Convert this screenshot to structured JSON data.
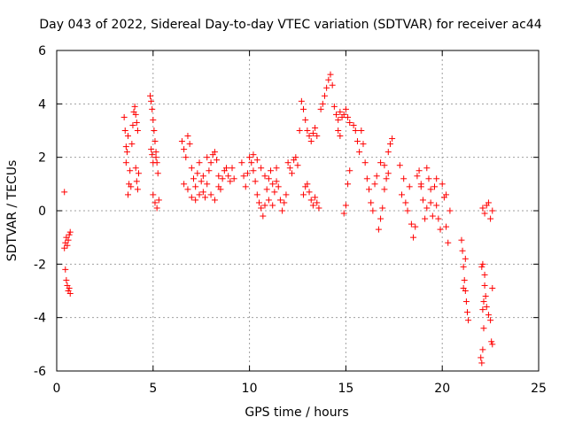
{
  "chart_data": {
    "type": "scatter",
    "title": "Day 043 of 2022, Sidereal Day-to-day VTEC variation (SDTVAR) for receiver ac44",
    "xlabel": "GPS time / hours",
    "ylabel": "SDTVAR / TECUs",
    "xlim": [
      0,
      25
    ],
    "ylim": [
      -6,
      6
    ],
    "xticks": [
      0,
      5,
      10,
      15,
      20,
      25
    ],
    "yticks": [
      -6,
      -4,
      -2,
      0,
      2,
      4,
      6
    ],
    "grid": true,
    "marker": "plus",
    "color": "#ff0000",
    "series": [
      {
        "name": "SDTVAR",
        "points": [
          [
            0.4,
            0.7
          ],
          [
            0.4,
            -1.4
          ],
          [
            0.45,
            -1.2
          ],
          [
            0.5,
            -1.0
          ],
          [
            0.55,
            -1.3
          ],
          [
            0.6,
            -1.1
          ],
          [
            0.65,
            -0.9
          ],
          [
            0.7,
            -0.8
          ],
          [
            0.45,
            -2.2
          ],
          [
            0.5,
            -2.6
          ],
          [
            0.55,
            -2.8
          ],
          [
            0.6,
            -3.0
          ],
          [
            0.65,
            -2.9
          ],
          [
            0.7,
            -3.1
          ],
          [
            3.5,
            3.5
          ],
          [
            3.55,
            3.0
          ],
          [
            3.6,
            2.4
          ],
          [
            3.6,
            1.8
          ],
          [
            3.65,
            2.2
          ],
          [
            3.7,
            2.8
          ],
          [
            3.75,
            1.0
          ],
          [
            3.7,
            0.6
          ],
          [
            3.8,
            1.5
          ],
          [
            3.85,
            0.9
          ],
          [
            3.9,
            2.5
          ],
          [
            3.95,
            3.2
          ],
          [
            4.0,
            3.7
          ],
          [
            4.05,
            3.9
          ],
          [
            4.1,
            3.6
          ],
          [
            4.15,
            3.3
          ],
          [
            4.2,
            3.0
          ],
          [
            4.1,
            1.6
          ],
          [
            4.15,
            1.1
          ],
          [
            4.2,
            0.8
          ],
          [
            4.25,
            1.4
          ],
          [
            4.85,
            4.3
          ],
          [
            4.9,
            4.1
          ],
          [
            4.95,
            3.8
          ],
          [
            5.0,
            3.4
          ],
          [
            5.05,
            3.0
          ],
          [
            5.1,
            2.6
          ],
          [
            5.15,
            2.2
          ],
          [
            5.2,
            1.8
          ],
          [
            5.25,
            1.4
          ],
          [
            5.3,
            0.4
          ],
          [
            5.2,
            0.1
          ],
          [
            5.1,
            0.3
          ],
          [
            4.95,
            2.1
          ],
          [
            5.0,
            1.8
          ],
          [
            4.9,
            2.3
          ],
          [
            5.15,
            2.0
          ],
          [
            5.0,
            0.6
          ],
          [
            6.5,
            2.6
          ],
          [
            6.6,
            2.3
          ],
          [
            6.7,
            2.0
          ],
          [
            6.8,
            2.8
          ],
          [
            6.9,
            2.5
          ],
          [
            7.0,
            1.6
          ],
          [
            7.1,
            1.2
          ],
          [
            7.2,
            0.9
          ],
          [
            7.3,
            1.4
          ],
          [
            7.4,
            1.8
          ],
          [
            7.5,
            1.1
          ],
          [
            7.6,
            0.7
          ],
          [
            7.7,
            0.5
          ],
          [
            7.8,
            1.0
          ],
          [
            7.9,
            1.5
          ],
          [
            8.0,
            1.8
          ],
          [
            8.1,
            2.1
          ],
          [
            8.2,
            2.2
          ],
          [
            8.3,
            1.9
          ],
          [
            8.4,
            1.3
          ],
          [
            8.5,
            0.8
          ],
          [
            8.6,
            1.2
          ],
          [
            8.7,
            1.5
          ],
          [
            8.8,
            1.6
          ],
          [
            8.9,
            1.3
          ],
          [
            9.0,
            1.1
          ],
          [
            9.1,
            1.6
          ],
          [
            9.2,
            1.2
          ],
          [
            6.6,
            1.0
          ],
          [
            6.8,
            0.8
          ],
          [
            7.0,
            0.5
          ],
          [
            7.2,
            0.4
          ],
          [
            7.4,
            0.6
          ],
          [
            7.6,
            1.3
          ],
          [
            7.8,
            2.0
          ],
          [
            8.0,
            0.6
          ],
          [
            8.2,
            0.4
          ],
          [
            8.4,
            0.9
          ],
          [
            9.6,
            1.8
          ],
          [
            9.7,
            1.3
          ],
          [
            9.8,
            0.9
          ],
          [
            9.9,
            1.4
          ],
          [
            10.0,
            2.0
          ],
          [
            10.1,
            1.8
          ],
          [
            10.2,
            1.5
          ],
          [
            10.3,
            1.1
          ],
          [
            10.4,
            0.6
          ],
          [
            10.5,
            0.3
          ],
          [
            10.6,
            0.1
          ],
          [
            10.7,
            -0.2
          ],
          [
            10.8,
            0.2
          ],
          [
            10.9,
            0.8
          ],
          [
            11.0,
            1.2
          ],
          [
            11.1,
            1.5
          ],
          [
            11.2,
            1.0
          ],
          [
            11.3,
            0.7
          ],
          [
            11.4,
            1.1
          ],
          [
            11.5,
            0.9
          ],
          [
            11.6,
            0.4
          ],
          [
            11.7,
            0.0
          ],
          [
            11.8,
            0.3
          ],
          [
            11.9,
            0.6
          ],
          [
            12.0,
            1.8
          ],
          [
            12.1,
            1.6
          ],
          [
            12.2,
            1.4
          ],
          [
            12.3,
            1.9
          ],
          [
            12.4,
            2.0
          ],
          [
            12.5,
            1.7
          ],
          [
            10.2,
            2.1
          ],
          [
            10.4,
            1.9
          ],
          [
            10.6,
            1.6
          ],
          [
            10.8,
            1.3
          ],
          [
            11.0,
            0.4
          ],
          [
            11.2,
            0.2
          ],
          [
            11.4,
            1.6
          ],
          [
            12.6,
            3.0
          ],
          [
            12.7,
            4.1
          ],
          [
            12.8,
            3.8
          ],
          [
            12.9,
            3.4
          ],
          [
            13.0,
            3.0
          ],
          [
            13.1,
            2.8
          ],
          [
            13.2,
            2.6
          ],
          [
            13.3,
            2.9
          ],
          [
            13.4,
            3.1
          ],
          [
            13.5,
            2.8
          ],
          [
            12.8,
            0.6
          ],
          [
            12.9,
            0.9
          ],
          [
            13.0,
            1.0
          ],
          [
            13.1,
            0.7
          ],
          [
            13.2,
            0.4
          ],
          [
            13.3,
            0.2
          ],
          [
            13.4,
            0.5
          ],
          [
            13.5,
            0.3
          ],
          [
            13.6,
            0.1
          ],
          [
            13.7,
            3.8
          ],
          [
            13.8,
            4.0
          ],
          [
            13.9,
            4.3
          ],
          [
            14.0,
            4.6
          ],
          [
            14.1,
            4.9
          ],
          [
            14.2,
            5.1
          ],
          [
            14.3,
            4.7
          ],
          [
            14.4,
            3.9
          ],
          [
            14.5,
            3.6
          ],
          [
            14.6,
            3.4
          ],
          [
            14.7,
            3.7
          ],
          [
            14.8,
            3.5
          ],
          [
            14.9,
            3.6
          ],
          [
            15.0,
            3.8
          ],
          [
            15.1,
            3.5
          ],
          [
            15.2,
            3.3
          ],
          [
            14.6,
            3.0
          ],
          [
            14.7,
            2.8
          ],
          [
            14.9,
            -0.1
          ],
          [
            15.0,
            0.2
          ],
          [
            15.1,
            1.0
          ],
          [
            15.2,
            1.5
          ],
          [
            15.4,
            3.2
          ],
          [
            15.5,
            3.0
          ],
          [
            15.6,
            2.6
          ],
          [
            15.7,
            2.2
          ],
          [
            15.8,
            3.0
          ],
          [
            15.9,
            2.5
          ],
          [
            16.0,
            1.8
          ],
          [
            16.1,
            1.2
          ],
          [
            16.2,
            0.8
          ],
          [
            16.3,
            0.3
          ],
          [
            16.4,
            0.0
          ],
          [
            16.5,
            1.0
          ],
          [
            16.6,
            1.3
          ],
          [
            16.7,
            -0.7
          ],
          [
            16.8,
            -0.3
          ],
          [
            16.9,
            0.1
          ],
          [
            17.0,
            0.8
          ],
          [
            17.1,
            1.2
          ],
          [
            17.2,
            1.4
          ],
          [
            16.8,
            1.8
          ],
          [
            17.0,
            1.7
          ],
          [
            17.2,
            2.2
          ],
          [
            17.3,
            2.5
          ],
          [
            17.4,
            2.7
          ],
          [
            17.8,
            1.7
          ],
          [
            17.9,
            0.6
          ],
          [
            18.0,
            1.2
          ],
          [
            18.1,
            0.3
          ],
          [
            18.2,
            0.0
          ],
          [
            18.3,
            0.9
          ],
          [
            18.4,
            -0.5
          ],
          [
            18.5,
            -1.0
          ],
          [
            18.6,
            -0.6
          ],
          [
            18.7,
            1.3
          ],
          [
            18.8,
            1.5
          ],
          [
            18.9,
            0.9
          ],
          [
            19.0,
            0.4
          ],
          [
            19.1,
            -0.3
          ],
          [
            19.2,
            0.1
          ],
          [
            19.3,
            1.2
          ],
          [
            19.4,
            0.8
          ],
          [
            19.5,
            -0.2
          ],
          [
            19.6,
            0.9
          ],
          [
            19.7,
            0.2
          ],
          [
            19.8,
            -0.3
          ],
          [
            19.9,
            -0.7
          ],
          [
            20.0,
            1.0
          ],
          [
            20.1,
            0.5
          ],
          [
            20.2,
            -0.6
          ],
          [
            20.3,
            -1.2
          ],
          [
            20.4,
            0.0
          ],
          [
            19.2,
            1.6
          ],
          [
            18.9,
            1.0
          ],
          [
            19.4,
            0.3
          ],
          [
            19.7,
            1.2
          ],
          [
            20.2,
            0.6
          ],
          [
            21.0,
            -1.1
          ],
          [
            21.05,
            -1.5
          ],
          [
            21.1,
            -2.1
          ],
          [
            21.15,
            -2.6
          ],
          [
            21.2,
            -3.0
          ],
          [
            21.25,
            -3.4
          ],
          [
            21.3,
            -3.8
          ],
          [
            21.35,
            -4.1
          ],
          [
            21.1,
            -2.9
          ],
          [
            21.2,
            -1.8
          ],
          [
            22.0,
            -5.5
          ],
          [
            22.05,
            -5.7
          ],
          [
            22.1,
            -5.2
          ],
          [
            22.15,
            -4.4
          ],
          [
            22.1,
            -3.7
          ],
          [
            22.15,
            -3.4
          ],
          [
            22.2,
            -2.8
          ],
          [
            22.05,
            -2.1
          ],
          [
            22.1,
            -2.0
          ],
          [
            22.2,
            -2.4
          ],
          [
            22.25,
            -3.2
          ],
          [
            22.3,
            -3.6
          ],
          [
            22.4,
            -3.9
          ],
          [
            22.5,
            -4.1
          ],
          [
            22.6,
            -2.9
          ],
          [
            22.55,
            -4.9
          ],
          [
            22.6,
            -5.0
          ],
          [
            22.1,
            0.1
          ],
          [
            22.2,
            -0.1
          ],
          [
            22.3,
            0.2
          ],
          [
            22.4,
            0.3
          ],
          [
            22.5,
            -0.3
          ],
          [
            22.6,
            0.0
          ]
        ]
      }
    ]
  }
}
